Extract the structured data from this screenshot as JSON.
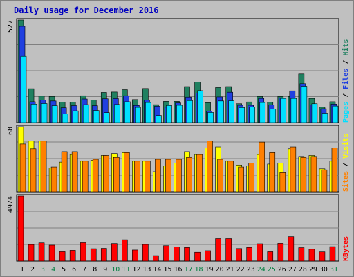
{
  "chart_data": [
    {
      "type": "bar",
      "title": "Daily usage for December 2016",
      "x": [
        "1",
        "2",
        "3",
        "4",
        "5",
        "6",
        "7",
        "8",
        "9",
        "10",
        "11",
        "12",
        "13",
        "14",
        "15",
        "16",
        "17",
        "18",
        "19",
        "20",
        "21",
        "22",
        "23",
        "24",
        "25",
        "26",
        "27",
        "28",
        "29",
        "30",
        "31"
      ],
      "weekend_days": [
        "3",
        "4",
        "10",
        "11",
        "17",
        "18",
        "24",
        "25",
        "31"
      ],
      "max_label": "527",
      "ylim": [
        0,
        527
      ],
      "grid": true,
      "legend": "right",
      "series": [
        {
          "name": "Hits",
          "color": "#208060",
          "values": [
            527,
            174,
            136,
            134,
            105,
            105,
            138,
            116,
            155,
            157,
            169,
            118,
            175,
            92,
            109,
            109,
            185,
            208,
            102,
            180,
            185,
            97,
            106,
            134,
            105,
            134,
            134,
            250,
            124,
            79,
            107
          ]
        },
        {
          "name": "Files",
          "color": "#2040e0",
          "values": [
            495,
            107,
            115,
            111,
            76,
            87,
            121,
            87,
            122,
            123,
            138,
            88,
            116,
            84,
            79,
            101,
            131,
            151,
            59,
            132,
            156,
            89,
            89,
            124,
            91,
            127,
            163,
            200,
            91,
            71,
            95
          ]
        },
        {
          "name": "Pages",
          "color": "#00e0ff",
          "values": [
            341,
            95,
            98,
            87,
            45,
            60,
            92,
            62,
            51,
            93,
            107,
            78,
            103,
            37,
            88,
            89,
            113,
            164,
            52,
            111,
            112,
            77,
            80,
            103,
            69,
            124,
            124,
            187,
            97,
            48,
            85
          ]
        }
      ]
    },
    {
      "type": "bar",
      "x": [
        "1",
        "2",
        "3",
        "4",
        "5",
        "6",
        "7",
        "8",
        "9",
        "10",
        "11",
        "12",
        "13",
        "14",
        "15",
        "16",
        "17",
        "18",
        "19",
        "20",
        "21",
        "22",
        "23",
        "24",
        "25",
        "26",
        "27",
        "28",
        "29",
        "30",
        "31"
      ],
      "max_label": "68",
      "ylim": [
        0,
        68
      ],
      "grid": true,
      "legend": "right",
      "series": [
        {
          "name": "Visits",
          "color": "#ffff00",
          "values": [
            68,
            53,
            53,
            25,
            31,
            39,
            32,
            33,
            38,
            40,
            41,
            32,
            32,
            21,
            27,
            30,
            42,
            39,
            46,
            47,
            32,
            28,
            27,
            39,
            29,
            30,
            45,
            37,
            38,
            24,
            32
          ]
        },
        {
          "name": "Sites",
          "color": "#ff8000",
          "values": [
            50,
            45,
            53,
            26,
            42,
            42,
            32,
            34,
            38,
            36,
            41,
            32,
            32,
            34,
            34,
            34,
            36,
            39,
            53,
            34,
            32,
            26,
            30,
            52,
            41,
            20,
            47,
            36,
            37,
            23,
            46
          ]
        }
      ]
    },
    {
      "type": "bar",
      "x": [
        "1",
        "2",
        "3",
        "4",
        "5",
        "6",
        "7",
        "8",
        "9",
        "10",
        "11",
        "12",
        "13",
        "14",
        "15",
        "16",
        "17",
        "18",
        "19",
        "20",
        "21",
        "22",
        "23",
        "24",
        "25",
        "26",
        "27",
        "28",
        "29",
        "30",
        "31"
      ],
      "max_label": "4974",
      "ylim": [
        0,
        4974
      ],
      "grid": true,
      "legend": "right",
      "series": [
        {
          "name": "KBytes",
          "color": "#ff0000",
          "values": [
            4974,
            1262,
            1390,
            1217,
            718,
            825,
            1404,
            948,
            977,
            1340,
            1634,
            850,
            1267,
            418,
            1177,
            1089,
            1040,
            676,
            795,
            1719,
            1719,
            962,
            1045,
            1322,
            718,
            1354,
            1871,
            1029,
            909,
            705,
            1106
          ]
        }
      ]
    }
  ]
}
